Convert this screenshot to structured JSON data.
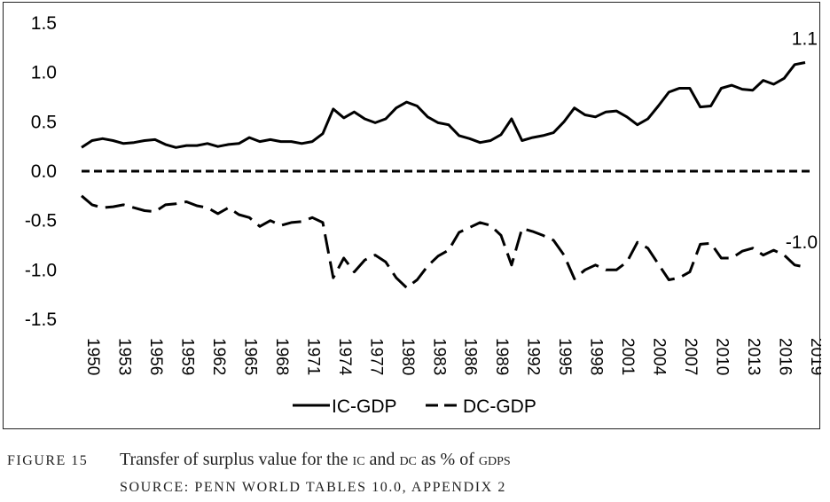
{
  "chart_data": {
    "type": "line",
    "x": [
      1950,
      1951,
      1952,
      1953,
      1954,
      1955,
      1956,
      1957,
      1958,
      1959,
      1960,
      1961,
      1962,
      1963,
      1964,
      1965,
      1966,
      1967,
      1968,
      1969,
      1970,
      1971,
      1972,
      1973,
      1974,
      1975,
      1976,
      1977,
      1978,
      1979,
      1980,
      1981,
      1982,
      1983,
      1984,
      1985,
      1986,
      1987,
      1988,
      1989,
      1990,
      1991,
      1992,
      1993,
      1994,
      1995,
      1996,
      1997,
      1998,
      1999,
      2000,
      2001,
      2002,
      2003,
      2004,
      2005,
      2006,
      2007,
      2008,
      2009,
      2010,
      2011,
      2012,
      2013,
      2014,
      2015,
      2016,
      2017,
      2018,
      2019
    ],
    "x_tick_labels": [
      "1950",
      "1953",
      "1956",
      "1959",
      "1962",
      "1965",
      "1968",
      "1971",
      "1974",
      "1977",
      "1980",
      "1983",
      "1986",
      "1989",
      "1992",
      "1995",
      "1998",
      "2001",
      "2004",
      "2007",
      "2010",
      "2013",
      "2016",
      "2019"
    ],
    "series": [
      {
        "name": "IC-GDP",
        "style": "solid",
        "values": [
          0.24,
          0.31,
          0.33,
          0.31,
          0.28,
          0.29,
          0.31,
          0.32,
          0.27,
          0.24,
          0.26,
          0.26,
          0.28,
          0.25,
          0.27,
          0.28,
          0.34,
          0.3,
          0.32,
          0.3,
          0.3,
          0.28,
          0.3,
          0.38,
          0.63,
          0.54,
          0.6,
          0.53,
          0.49,
          0.53,
          0.64,
          0.7,
          0.66,
          0.55,
          0.49,
          0.47,
          0.36,
          0.33,
          0.29,
          0.31,
          0.37,
          0.53,
          0.31,
          0.34,
          0.36,
          0.39,
          0.5,
          0.64,
          0.57,
          0.55,
          0.6,
          0.61,
          0.55,
          0.47,
          0.53,
          0.66,
          0.8,
          0.84,
          0.84,
          0.65,
          0.66,
          0.84,
          0.87,
          0.83,
          0.82,
          0.92,
          0.88,
          0.94,
          1.08,
          1.1
        ]
      },
      {
        "name": "DC-GDP",
        "style": "dashed",
        "values": [
          -0.25,
          -0.34,
          -0.37,
          -0.36,
          -0.34,
          -0.37,
          -0.4,
          -0.41,
          -0.34,
          -0.33,
          -0.31,
          -0.35,
          -0.37,
          -0.43,
          -0.37,
          -0.44,
          -0.47,
          -0.56,
          -0.5,
          -0.55,
          -0.52,
          -0.51,
          -0.47,
          -0.52,
          -1.08,
          -0.88,
          -1.02,
          -0.9,
          -0.85,
          -0.92,
          -1.08,
          -1.18,
          -1.1,
          -0.96,
          -0.86,
          -0.8,
          -0.62,
          -0.57,
          -0.52,
          -0.55,
          -0.65,
          -0.95,
          -0.58,
          -0.61,
          -0.65,
          -0.7,
          -0.85,
          -1.09,
          -1.0,
          -0.95,
          -1.0,
          -1.0,
          -0.92,
          -0.72,
          -0.78,
          -0.94,
          -1.1,
          -1.08,
          -1.02,
          -0.74,
          -0.73,
          -0.88,
          -0.88,
          -0.81,
          -0.78,
          -0.85,
          -0.8,
          -0.85,
          -0.95,
          -0.97
        ]
      }
    ],
    "reference_line": {
      "y": 0.0,
      "style": "dashed"
    },
    "annotations": [
      {
        "text": "1.1",
        "series": "IC-GDP",
        "at_x": 2019
      },
      {
        "text": "-1.0",
        "series": "DC-GDP",
        "at_x": 2019
      }
    ],
    "ylim": [
      -1.5,
      1.5
    ],
    "y_ticks": [
      "1.5",
      "1.0",
      "0.5",
      "0.0",
      "-0.5",
      "-1.0",
      "-1.5"
    ],
    "xlim": [
      1950,
      2019
    ],
    "grid": false,
    "legend": {
      "placement": "bottom-center"
    },
    "title": "",
    "xlabel": "",
    "ylabel": ""
  },
  "caption": {
    "figure_label": "FIGURE 15",
    "title_parts": [
      "Transfer of surplus value for the ",
      "ic",
      " and ",
      "dc",
      " as % of ",
      "gdp",
      "s"
    ],
    "source": "SOURCE: PENN WORLD TABLES 10.0, APPENDIX 2"
  }
}
